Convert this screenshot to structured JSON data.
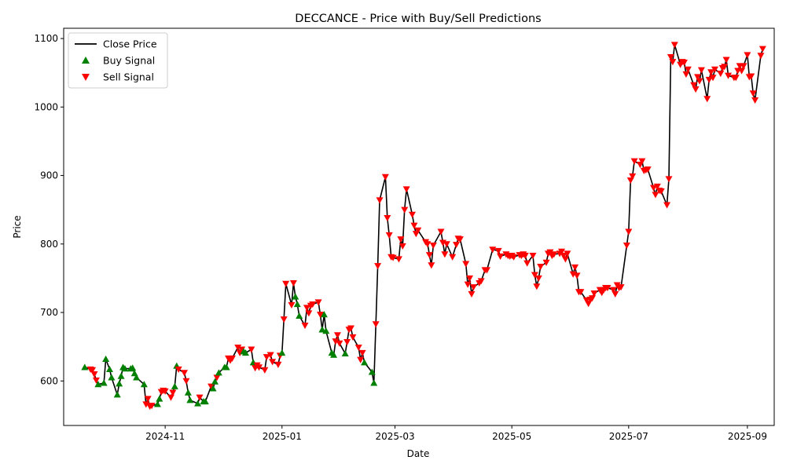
{
  "chart_data": {
    "type": "line",
    "title": "DECCANCE - Price with Buy/Sell Predictions",
    "xlabel": "Date",
    "ylabel": "Price",
    "x_range": [
      "2024-09-09",
      "2025-09-15"
    ],
    "ylim": [
      535,
      1115
    ],
    "x_ticks": [
      {
        "date": "2024-11-01",
        "label": "2024-11"
      },
      {
        "date": "2025-01-01",
        "label": "2025-01"
      },
      {
        "date": "2025-03-01",
        "label": "2025-03"
      },
      {
        "date": "2025-05-01",
        "label": "2025-05"
      },
      {
        "date": "2025-07-01",
        "label": "2025-07"
      },
      {
        "date": "2025-09-01",
        "label": "2025-09"
      }
    ],
    "y_ticks": [
      600,
      700,
      800,
      900,
      1000,
      1100
    ],
    "grid": false,
    "legend_position": "top-left",
    "series_colors": {
      "close": "#000000",
      "buy": "#008000",
      "sell": "#ff0000"
    },
    "series": [
      {
        "name": "Close Price",
        "kind": "line"
      },
      {
        "name": "Buy Signal",
        "kind": "marker",
        "marker": "triangle-up"
      },
      {
        "name": "Sell Signal",
        "kind": "marker",
        "marker": "triangle-down"
      }
    ],
    "points": [
      [
        "2024-09-20",
        620,
        "B"
      ],
      [
        "2024-09-23",
        617,
        "S"
      ],
      [
        "2024-09-24",
        616,
        "S"
      ],
      [
        "2024-09-25",
        610,
        "S"
      ],
      [
        "2024-09-26",
        601,
        "S"
      ],
      [
        "2024-09-27",
        595,
        "B"
      ],
      [
        "2024-09-30",
        597,
        "B"
      ],
      [
        "2024-10-01",
        632,
        "B"
      ],
      [
        "2024-10-03",
        617,
        "B"
      ],
      [
        "2024-10-04",
        605,
        "B"
      ],
      [
        "2024-10-07",
        580,
        "B"
      ],
      [
        "2024-10-08",
        596,
        "B"
      ],
      [
        "2024-10-09",
        607,
        "B"
      ],
      [
        "2024-10-10",
        620,
        "B"
      ],
      [
        "2024-10-11",
        618,
        "B"
      ],
      [
        "2024-10-14",
        618,
        "B"
      ],
      [
        "2024-10-15",
        619,
        "B"
      ],
      [
        "2024-10-16",
        611,
        "B"
      ],
      [
        "2024-10-17",
        605,
        "B"
      ],
      [
        "2024-10-21",
        595,
        "B"
      ],
      [
        "2024-10-22",
        566,
        "S"
      ],
      [
        "2024-10-23",
        574,
        "S"
      ],
      [
        "2024-10-24",
        563,
        "S"
      ],
      [
        "2024-10-25",
        564,
        "S"
      ],
      [
        "2024-10-28",
        566,
        "B"
      ],
      [
        "2024-10-29",
        574,
        "B"
      ],
      [
        "2024-10-30",
        584,
        "S"
      ],
      [
        "2024-10-31",
        586,
        "S"
      ],
      [
        "2024-11-01",
        585,
        "S"
      ],
      [
        "2024-11-04",
        576,
        "S"
      ],
      [
        "2024-11-05",
        583,
        "S"
      ],
      [
        "2024-11-06",
        592,
        "B"
      ],
      [
        "2024-11-07",
        622,
        "B"
      ],
      [
        "2024-11-08",
        617,
        "S"
      ],
      [
        "2024-11-11",
        612,
        "S"
      ],
      [
        "2024-11-12",
        600,
        "S"
      ],
      [
        "2024-11-13",
        583,
        "B"
      ],
      [
        "2024-11-14",
        572,
        "B"
      ],
      [
        "2024-11-18",
        567,
        "B"
      ],
      [
        "2024-11-19",
        576,
        "S"
      ],
      [
        "2024-11-21",
        570,
        "B"
      ],
      [
        "2024-11-22",
        570,
        "B"
      ],
      [
        "2024-11-25",
        592,
        "S"
      ],
      [
        "2024-11-26",
        589,
        "B"
      ],
      [
        "2024-11-27",
        599,
        "B"
      ],
      [
        "2024-11-28",
        605,
        "S"
      ],
      [
        "2024-11-29",
        612,
        "B"
      ],
      [
        "2024-12-02",
        620,
        "B"
      ],
      [
        "2024-12-03",
        620,
        "B"
      ],
      [
        "2024-12-04",
        633,
        "S"
      ],
      [
        "2024-12-05",
        630,
        "S"
      ],
      [
        "2024-12-06",
        633,
        "S"
      ],
      [
        "2024-12-09",
        649,
        "S"
      ],
      [
        "2024-12-10",
        641,
        "S"
      ],
      [
        "2024-12-11",
        646,
        "S"
      ],
      [
        "2024-12-12",
        643,
        "B"
      ],
      [
        "2024-12-13",
        641,
        "B"
      ],
      [
        "2024-12-16",
        646,
        "S"
      ],
      [
        "2024-12-17",
        627,
        "B"
      ],
      [
        "2024-12-18",
        619,
        "S"
      ],
      [
        "2024-12-19",
        623,
        "S"
      ],
      [
        "2024-12-20",
        620,
        "S"
      ],
      [
        "2024-12-23",
        616,
        "S"
      ],
      [
        "2024-12-24",
        635,
        "S"
      ],
      [
        "2024-12-26",
        638,
        "S"
      ],
      [
        "2024-12-27",
        628,
        "S"
      ],
      [
        "2024-12-30",
        624,
        "S"
      ],
      [
        "2024-12-31",
        637,
        "S"
      ],
      [
        "2025-01-01",
        641,
        "B"
      ],
      [
        "2025-01-02",
        690,
        "S"
      ],
      [
        "2025-01-03",
        742,
        "S"
      ],
      [
        "2025-01-06",
        711,
        "S"
      ],
      [
        "2025-01-07",
        743,
        "S"
      ],
      [
        "2025-01-08",
        723,
        "B"
      ],
      [
        "2025-01-09",
        712,
        "B"
      ],
      [
        "2025-01-10",
        695,
        "B"
      ],
      [
        "2025-01-13",
        681,
        "S"
      ],
      [
        "2025-01-14",
        707,
        "S"
      ],
      [
        "2025-01-15",
        699,
        "S"
      ],
      [
        "2025-01-16",
        710,
        "S"
      ],
      [
        "2025-01-17",
        712,
        "S"
      ],
      [
        "2025-01-20",
        715,
        "S"
      ],
      [
        "2025-01-21",
        697,
        "S"
      ],
      [
        "2025-01-22",
        675,
        "B"
      ],
      [
        "2025-01-23",
        697,
        "B"
      ],
      [
        "2025-01-24",
        673,
        "B"
      ],
      [
        "2025-01-27",
        641,
        "B"
      ],
      [
        "2025-01-28",
        638,
        "B"
      ],
      [
        "2025-01-29",
        658,
        "S"
      ],
      [
        "2025-01-30",
        667,
        "S"
      ],
      [
        "2025-01-31",
        655,
        "S"
      ],
      [
        "2025-02-03",
        640,
        "B"
      ],
      [
        "2025-02-04",
        657,
        "S"
      ],
      [
        "2025-02-05",
        675,
        "S"
      ],
      [
        "2025-02-06",
        677,
        "S"
      ],
      [
        "2025-02-07",
        664,
        "S"
      ],
      [
        "2025-02-10",
        649,
        "S"
      ],
      [
        "2025-02-11",
        631,
        "S"
      ],
      [
        "2025-02-12",
        641,
        "S"
      ],
      [
        "2025-02-13",
        627,
        "B"
      ],
      [
        "2025-02-17",
        613,
        "B"
      ],
      [
        "2025-02-18",
        597,
        "B"
      ],
      [
        "2025-02-19",
        683,
        "S"
      ],
      [
        "2025-02-20",
        768,
        "S"
      ],
      [
        "2025-02-21",
        864,
        "S"
      ],
      [
        "2025-02-24",
        898,
        "S"
      ],
      [
        "2025-02-25",
        838,
        "S"
      ],
      [
        "2025-02-26",
        813,
        "S"
      ],
      [
        "2025-02-27",
        781,
        "S"
      ],
      [
        "2025-02-28",
        780,
        "S"
      ],
      [
        "2025-03-03",
        778,
        "S"
      ],
      [
        "2025-03-04",
        807,
        "S"
      ],
      [
        "2025-03-05",
        797,
        "S"
      ],
      [
        "2025-03-06",
        850,
        "S"
      ],
      [
        "2025-03-07",
        880,
        "S"
      ],
      [
        "2025-03-10",
        843,
        "S"
      ],
      [
        "2025-03-11",
        827,
        "S"
      ],
      [
        "2025-03-12",
        815,
        "S"
      ],
      [
        "2025-03-13",
        820,
        "S"
      ],
      [
        "2025-03-17",
        803,
        "S"
      ],
      [
        "2025-03-18",
        800,
        "S"
      ],
      [
        "2025-03-19",
        784,
        "S"
      ],
      [
        "2025-03-20",
        769,
        "S"
      ],
      [
        "2025-03-21",
        798,
        "S"
      ],
      [
        "2025-03-25",
        818,
        "S"
      ],
      [
        "2025-03-26",
        802,
        "S"
      ],
      [
        "2025-03-27",
        785,
        "S"
      ],
      [
        "2025-03-28",
        800,
        "S"
      ],
      [
        "2025-03-31",
        781,
        "S"
      ],
      [
        "2025-04-02",
        799,
        "S"
      ],
      [
        "2025-04-03",
        808,
        "S"
      ],
      [
        "2025-04-04",
        807,
        "S"
      ],
      [
        "2025-04-07",
        771,
        "S"
      ],
      [
        "2025-04-08",
        741,
        "S"
      ],
      [
        "2025-04-09",
        750,
        "S"
      ],
      [
        "2025-04-10",
        727,
        "S"
      ],
      [
        "2025-04-11",
        737,
        "S"
      ],
      [
        "2025-04-14",
        743,
        "S"
      ],
      [
        "2025-04-15",
        746,
        "S"
      ],
      [
        "2025-04-17",
        762,
        "S"
      ],
      [
        "2025-04-18",
        762,
        "S"
      ],
      [
        "2025-04-21",
        792,
        "S"
      ],
      [
        "2025-04-24",
        790,
        "S"
      ],
      [
        "2025-04-25",
        782,
        "S"
      ],
      [
        "2025-04-28",
        785,
        "S"
      ],
      [
        "2025-04-29",
        783,
        "S"
      ],
      [
        "2025-04-30",
        782,
        "S"
      ],
      [
        "2025-05-01",
        783,
        "S"
      ],
      [
        "2025-05-02",
        781,
        "S"
      ],
      [
        "2025-05-05",
        784,
        "S"
      ],
      [
        "2025-05-06",
        783,
        "S"
      ],
      [
        "2025-05-07",
        785,
        "S"
      ],
      [
        "2025-05-08",
        783,
        "S"
      ],
      [
        "2025-05-09",
        772,
        "S"
      ],
      [
        "2025-05-12",
        783,
        "S"
      ],
      [
        "2025-05-13",
        755,
        "S"
      ],
      [
        "2025-05-14",
        738,
        "S"
      ],
      [
        "2025-05-15",
        750,
        "S"
      ],
      [
        "2025-05-16",
        767,
        "S"
      ],
      [
        "2025-05-19",
        773,
        "S"
      ],
      [
        "2025-05-20",
        786,
        "S"
      ],
      [
        "2025-05-21",
        788,
        "S"
      ],
      [
        "2025-05-22",
        783,
        "S"
      ],
      [
        "2025-05-23",
        785,
        "S"
      ],
      [
        "2025-05-26",
        786,
        "S"
      ],
      [
        "2025-05-27",
        789,
        "S"
      ],
      [
        "2025-05-28",
        783,
        "S"
      ],
      [
        "2025-05-29",
        778,
        "S"
      ],
      [
        "2025-05-30",
        786,
        "S"
      ],
      [
        "2025-06-02",
        756,
        "S"
      ],
      [
        "2025-06-03",
        766,
        "S"
      ],
      [
        "2025-06-04",
        754,
        "S"
      ],
      [
        "2025-06-05",
        730,
        "S"
      ],
      [
        "2025-06-06",
        730,
        "S"
      ],
      [
        "2025-06-09",
        718,
        "S"
      ],
      [
        "2025-06-10",
        713,
        "S"
      ],
      [
        "2025-06-11",
        719,
        "S"
      ],
      [
        "2025-06-12",
        721,
        "S"
      ],
      [
        "2025-06-13",
        728,
        "S"
      ],
      [
        "2025-06-16",
        733,
        "S"
      ],
      [
        "2025-06-17",
        729,
        "S"
      ],
      [
        "2025-06-18",
        733,
        "S"
      ],
      [
        "2025-06-19",
        736,
        "S"
      ],
      [
        "2025-06-20",
        736,
        "S"
      ],
      [
        "2025-06-23",
        733,
        "S"
      ],
      [
        "2025-06-24",
        727,
        "S"
      ],
      [
        "2025-06-25",
        740,
        "S"
      ],
      [
        "2025-06-26",
        736,
        "S"
      ],
      [
        "2025-06-27",
        737,
        "S"
      ],
      [
        "2025-06-30",
        798,
        "S"
      ],
      [
        "2025-07-01",
        818,
        "S"
      ],
      [
        "2025-07-02",
        893,
        "S"
      ],
      [
        "2025-07-03",
        899,
        "S"
      ],
      [
        "2025-07-04",
        921,
        "S"
      ],
      [
        "2025-07-07",
        916,
        "S"
      ],
      [
        "2025-07-08",
        921,
        "S"
      ],
      [
        "2025-07-09",
        907,
        "S"
      ],
      [
        "2025-07-10",
        908,
        "S"
      ],
      [
        "2025-07-11",
        909,
        "S"
      ],
      [
        "2025-07-14",
        882,
        "S"
      ],
      [
        "2025-07-15",
        872,
        "S"
      ],
      [
        "2025-07-16",
        884,
        "S"
      ],
      [
        "2025-07-17",
        878,
        "S"
      ],
      [
        "2025-07-18",
        877,
        "S"
      ],
      [
        "2025-07-21",
        857,
        "S"
      ],
      [
        "2025-07-22",
        895,
        "S"
      ],
      [
        "2025-07-23",
        1073,
        "S"
      ],
      [
        "2025-07-24",
        1066,
        "S"
      ],
      [
        "2025-07-25",
        1091,
        "S"
      ],
      [
        "2025-07-28",
        1062,
        "S"
      ],
      [
        "2025-07-29",
        1066,
        "S"
      ],
      [
        "2025-07-30",
        1065,
        "S"
      ],
      [
        "2025-07-31",
        1048,
        "S"
      ],
      [
        "2025-08-01",
        1055,
        "S"
      ],
      [
        "2025-08-04",
        1032,
        "S"
      ],
      [
        "2025-08-05",
        1026,
        "S"
      ],
      [
        "2025-08-06",
        1044,
        "S"
      ],
      [
        "2025-08-07",
        1038,
        "S"
      ],
      [
        "2025-08-08",
        1054,
        "S"
      ],
      [
        "2025-08-11",
        1012,
        "S"
      ],
      [
        "2025-08-12",
        1040,
        "S"
      ],
      [
        "2025-08-13",
        1051,
        "S"
      ],
      [
        "2025-08-14",
        1043,
        "S"
      ],
      [
        "2025-08-15",
        1055,
        "S"
      ],
      [
        "2025-08-18",
        1049,
        "S"
      ],
      [
        "2025-08-19",
        1057,
        "S"
      ],
      [
        "2025-08-20",
        1059,
        "S"
      ],
      [
        "2025-08-21",
        1069,
        "S"
      ],
      [
        "2025-08-22",
        1046,
        "S"
      ],
      [
        "2025-08-25",
        1043,
        "S"
      ],
      [
        "2025-08-26",
        1043,
        "S"
      ],
      [
        "2025-08-27",
        1053,
        "S"
      ],
      [
        "2025-08-28",
        1060,
        "S"
      ],
      [
        "2025-08-29",
        1053,
        "S"
      ],
      [
        "2025-08-30",
        1060,
        "S"
      ],
      [
        "2025-09-01",
        1076,
        "S"
      ],
      [
        "2025-09-02",
        1044,
        "S"
      ],
      [
        "2025-09-03",
        1045,
        "S"
      ],
      [
        "2025-09-04",
        1020,
        "S"
      ],
      [
        "2025-09-05",
        1010,
        "S"
      ],
      [
        "2025-09-08",
        1075,
        "S"
      ],
      [
        "2025-09-09",
        1085,
        "S"
      ]
    ]
  }
}
